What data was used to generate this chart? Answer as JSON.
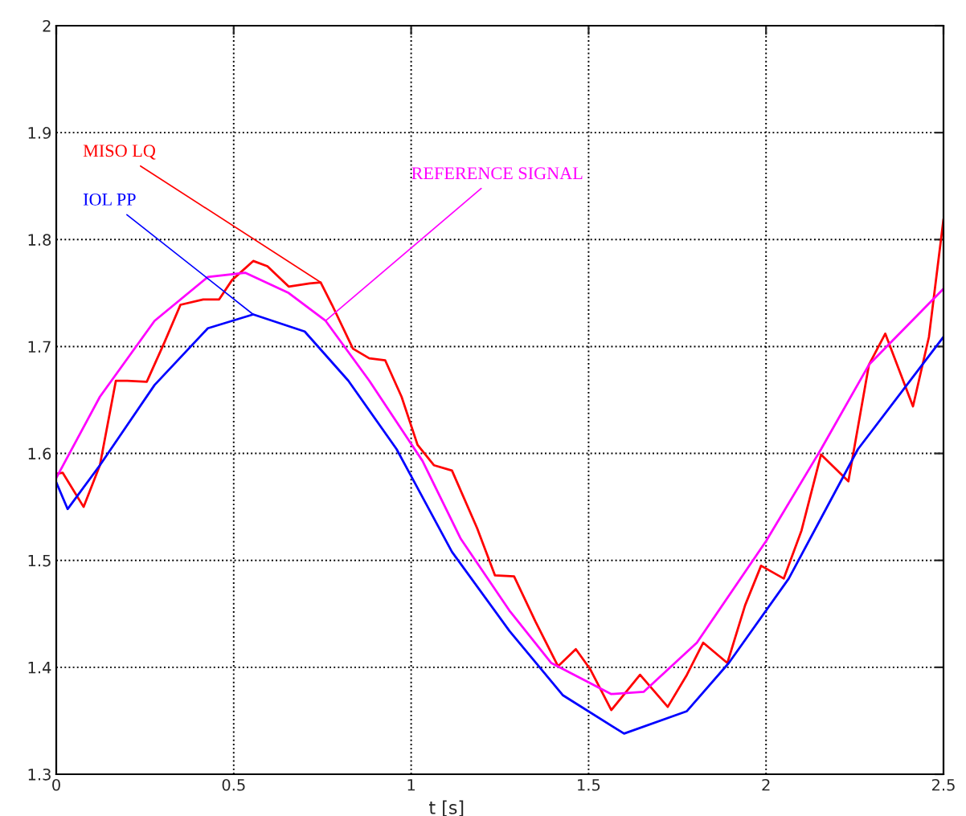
{
  "chart_data": {
    "type": "line",
    "xlabel": "t [s]",
    "xlim": [
      0,
      2.5
    ],
    "ylim": [
      1.3,
      2
    ],
    "xticks": [
      0,
      0.5,
      1,
      1.5,
      2,
      2.5
    ],
    "yticks": [
      1.3,
      1.4,
      1.5,
      1.6,
      1.7,
      1.8,
      1.9,
      2
    ],
    "grid": true,
    "legend": false,
    "line_style": "solid",
    "series": [
      {
        "name": "MISO LQ",
        "color": "#ff0000",
        "x": [
          0,
          0.018,
          0.077,
          0.123,
          0.168,
          0.2,
          0.255,
          0.305,
          0.35,
          0.414,
          0.459,
          0.495,
          0.555,
          0.595,
          0.655,
          0.714,
          0.745,
          0.777,
          0.836,
          0.882,
          0.927,
          0.973,
          1.018,
          1.064,
          1.115,
          1.186,
          1.236,
          1.29,
          1.35,
          1.414,
          1.464,
          1.505,
          1.564,
          1.645,
          1.723,
          1.777,
          1.823,
          1.891,
          1.941,
          1.986,
          2.05,
          2.1,
          2.155,
          2.232,
          2.29,
          2.336,
          2.414,
          2.459,
          2.5
        ],
        "values": [
          1.581,
          1.582,
          1.55,
          1.589,
          1.668,
          1.668,
          1.667,
          1.704,
          1.739,
          1.744,
          1.744,
          1.762,
          1.78,
          1.775,
          1.756,
          1.759,
          1.76,
          1.739,
          1.698,
          1.689,
          1.687,
          1.653,
          1.608,
          1.589,
          1.584,
          1.53,
          1.486,
          1.485,
          1.443,
          1.401,
          1.417,
          1.398,
          1.36,
          1.393,
          1.363,
          1.393,
          1.423,
          1.404,
          1.458,
          1.495,
          1.483,
          1.528,
          1.599,
          1.574,
          1.683,
          1.712,
          1.644,
          1.709,
          1.819
        ]
      },
      {
        "name": "IOL PP",
        "color": "#0000ff",
        "x": [
          0,
          0.032,
          0.123,
          0.277,
          0.427,
          0.555,
          0.7,
          0.823,
          0.959,
          1.115,
          1.277,
          1.427,
          1.6,
          1.777,
          1.895,
          2.064,
          2.259,
          2.5
        ],
        "values": [
          1.573,
          1.548,
          1.589,
          1.664,
          1.717,
          1.73,
          1.714,
          1.668,
          1.604,
          1.508,
          1.434,
          1.374,
          1.338,
          1.359,
          1.404,
          1.483,
          1.604,
          1.709
        ]
      },
      {
        "name": "REFERENCE SIGNAL",
        "color": "#ff00ff",
        "x": [
          0,
          0.123,
          0.277,
          0.427,
          0.532,
          0.655,
          0.759,
          0.882,
          1.032,
          1.14,
          1.277,
          1.395,
          1.564,
          1.655,
          1.805,
          2.0,
          2.155,
          2.29,
          2.5
        ],
        "values": [
          1.577,
          1.653,
          1.724,
          1.765,
          1.769,
          1.75,
          1.724,
          1.668,
          1.593,
          1.52,
          1.453,
          1.404,
          1.375,
          1.377,
          1.423,
          1.518,
          1.604,
          1.683,
          1.754
        ]
      }
    ]
  }
}
